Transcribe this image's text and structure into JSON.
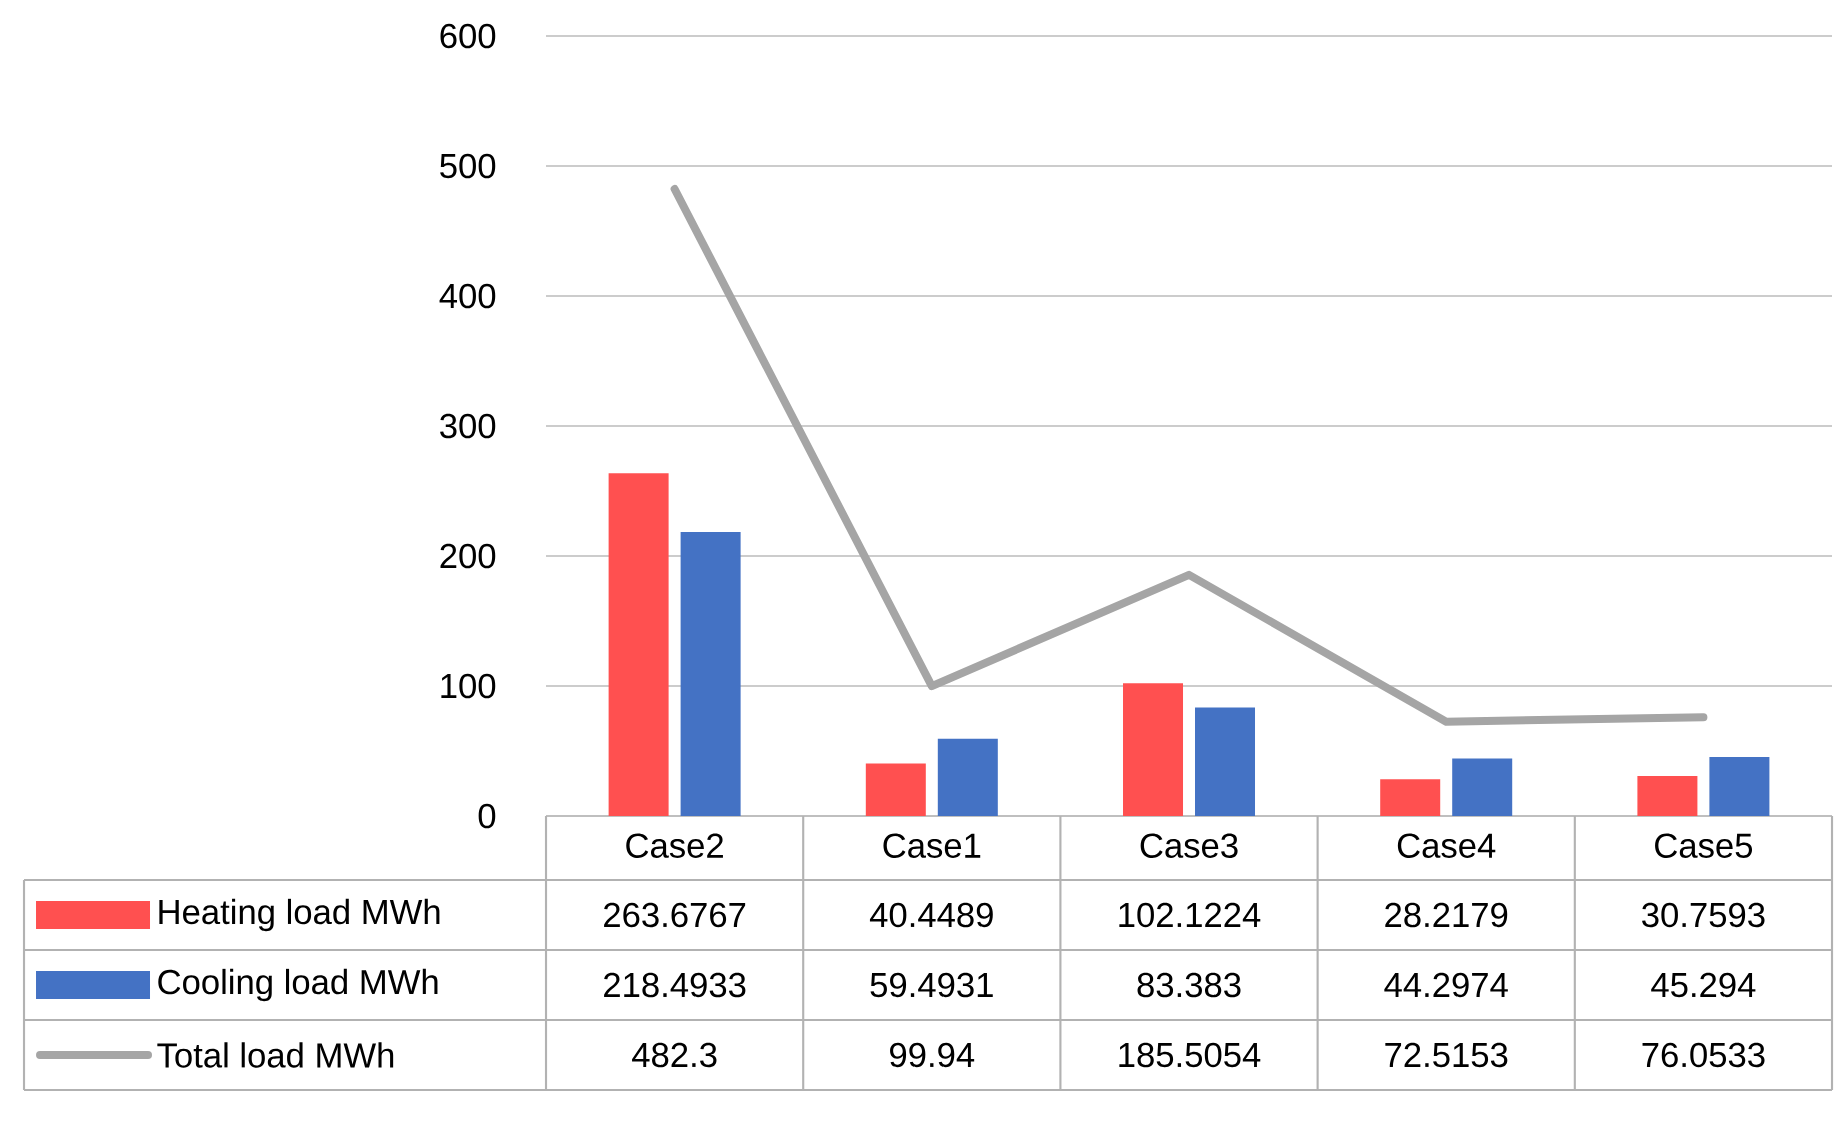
{
  "chart_data": {
    "type": "bar",
    "categories": [
      "Case2",
      "Case1",
      "Case3",
      "Case4",
      "Case5"
    ],
    "series": [
      {
        "name": "Heating load MWh",
        "color": "#ff5050",
        "values": [
          263.6767,
          40.4489,
          102.1224,
          28.2179,
          30.7593
        ]
      },
      {
        "name": "Cooling load MWh",
        "color": "#4472c4",
        "values": [
          218.4933,
          59.4931,
          83.383,
          44.2974,
          45.294
        ]
      },
      {
        "name": "Total load MWh",
        "type": "line",
        "color": "#a5a5a5",
        "values": [
          482.3,
          99.94,
          185.5054,
          72.5153,
          76.0533
        ]
      }
    ],
    "ylim": [
      0,
      600
    ],
    "yticks": [
      0,
      100,
      200,
      300,
      400,
      500,
      600
    ],
    "grid": "y",
    "legend": "bottom",
    "data_labels": true
  }
}
